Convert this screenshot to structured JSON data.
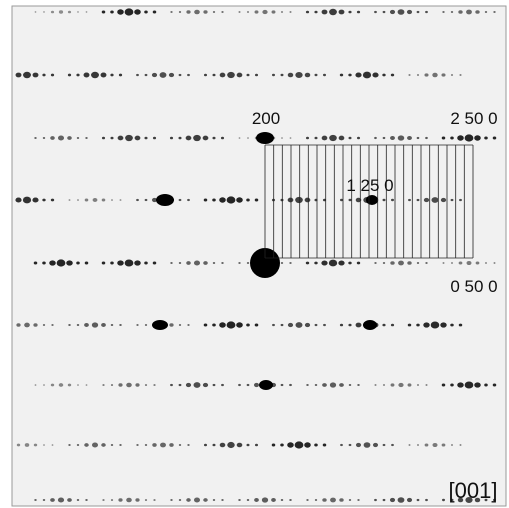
{
  "labels": {
    "spot_200": "200",
    "spot_2_50_0": "2 50 0",
    "spot_1_25_0": "1 25 0",
    "spot_0_50_0": "0 50 0",
    "zone_axis": "[001]"
  }
}
